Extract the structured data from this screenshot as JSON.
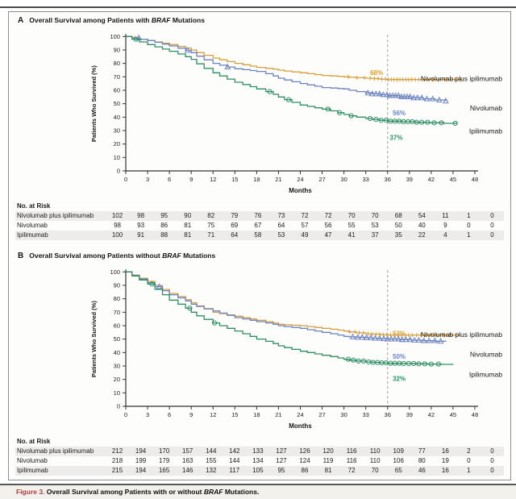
{
  "caption": {
    "label": "Figure 3.",
    "text_before": " Overall Survival among Patients with or without ",
    "italic": "BRAF",
    "text_after": " Mutations."
  },
  "colors": {
    "combo": "#d89e3c",
    "nivolumab": "#6c83c2",
    "ipilimumab": "#2e8e63",
    "caption_red": "#b0413e",
    "axis": "#333333",
    "dashed_line": "#9a9a9a",
    "row_stripe": "#edecea"
  },
  "chart_data": [
    {
      "type": "line",
      "subtype": "kaplan-meier-step",
      "panel_letter": "A",
      "title_prefix": "Overall Survival among Patients with ",
      "title_italic": "BRAF",
      "title_suffix": " Mutations",
      "xlabel": "Months",
      "ylabel": "Patients Who Survived (%)",
      "xlim": [
        0,
        48
      ],
      "ylim": [
        0,
        100
      ],
      "xticks": [
        0,
        3,
        6,
        9,
        12,
        15,
        18,
        21,
        24,
        27,
        30,
        33,
        36,
        39,
        42,
        45,
        48
      ],
      "yticks": [
        0,
        10,
        20,
        30,
        40,
        50,
        60,
        70,
        80,
        90,
        100
      ],
      "grid": false,
      "dashed_line_x": 36,
      "series": [
        {
          "name": "Nivolumab plus ipilimumab",
          "color": "#d89e3c",
          "marker": "plus",
          "rate_label": "68%",
          "rate_pos": [
            33.6,
            71.5
          ],
          "name_pct": 67,
          "anchors": [
            [
              0,
              100
            ],
            [
              3,
              97
            ],
            [
              6,
              94
            ],
            [
              9,
              90
            ],
            [
              12,
              84
            ],
            [
              15,
              80
            ],
            [
              18,
              77
            ],
            [
              21,
              75
            ],
            [
              24,
              73
            ],
            [
              27,
              71
            ],
            [
              30,
              70
            ],
            [
              33,
              69
            ],
            [
              36,
              68
            ],
            [
              46,
              68
            ]
          ],
          "censors": [
            1.2,
            30.6,
            31.8,
            32.8,
            33.6,
            34.2,
            34.7,
            35.2,
            35.7,
            36.1,
            36.5,
            36.9,
            37.3,
            37.7,
            38.1,
            38.5,
            38.9,
            39.3,
            39.8,
            40.3,
            40.9,
            41.5,
            42.2,
            43,
            44,
            45.2,
            46
          ]
        },
        {
          "name": "Nivolumab",
          "color": "#6c83c2",
          "marker": "triangle",
          "rate_label": "56%",
          "rate_pos": [
            36.7,
            41.5
          ],
          "name_pct": 45,
          "anchors": [
            [
              0,
              100
            ],
            [
              3,
              97
            ],
            [
              6,
              93
            ],
            [
              9,
              88
            ],
            [
              12,
              80
            ],
            [
              15,
              76
            ],
            [
              18,
              74
            ],
            [
              21,
              69
            ],
            [
              24,
              65
            ],
            [
              27,
              62
            ],
            [
              30,
              61
            ],
            [
              33,
              58
            ],
            [
              36,
              56
            ],
            [
              44,
              52
            ]
          ],
          "censors": [
            1.8,
            8.5,
            14,
            33.3,
            33.9,
            34.4,
            34.9,
            35.4,
            35.9,
            36.3,
            36.7,
            37.1,
            37.5,
            37.9,
            38.3,
            38.7,
            39.1,
            39.6,
            40.1,
            40.7,
            41.4,
            42.2,
            43.1,
            44
          ]
        },
        {
          "name": "Ipilimumab",
          "color": "#2e8e63",
          "marker": "circle",
          "rate_label": "37%",
          "rate_pos": [
            36.3,
            23
          ],
          "name_pct": 28,
          "anchors": [
            [
              0,
              100
            ],
            [
              3,
              94
            ],
            [
              6,
              89
            ],
            [
              9,
              83
            ],
            [
              12,
              73
            ],
            [
              15,
              66
            ],
            [
              18,
              61
            ],
            [
              21,
              55
            ],
            [
              24,
              49
            ],
            [
              27,
              46
            ],
            [
              30,
              42
            ],
            [
              33,
              39
            ],
            [
              36,
              37
            ],
            [
              45.5,
              35
            ]
          ],
          "censors": [
            1.4,
            19.8,
            22.4,
            27.8,
            29.4,
            31,
            33.6,
            34.4,
            35.1,
            35.8,
            36.4,
            37,
            37.6,
            38.2,
            38.8,
            39.4,
            40,
            40.7,
            41.5,
            42.4,
            43.4,
            45.3
          ]
        }
      ],
      "at_risk": {
        "header": "No. at Risk",
        "rows": [
          {
            "label": "Nivolumab plus ipilimumab",
            "values": [
              102,
              98,
              95,
              90,
              82,
              79,
              76,
              73,
              72,
              72,
              70,
              70,
              68,
              54,
              11,
              1,
              0
            ]
          },
          {
            "label": "Nivolumab",
            "values": [
              98,
              93,
              86,
              81,
              75,
              69,
              67,
              64,
              57,
              56,
              55,
              53,
              50,
              40,
              9,
              0,
              0
            ]
          },
          {
            "label": "Ipilimumab",
            "values": [
              100,
              91,
              88,
              81,
              71,
              64,
              58,
              53,
              49,
              47,
              41,
              37,
              35,
              22,
              4,
              1,
              0
            ]
          }
        ]
      }
    },
    {
      "type": "line",
      "subtype": "kaplan-meier-step",
      "panel_letter": "B",
      "title_prefix": "Overall Survival among Patients without ",
      "title_italic": "BRAF",
      "title_suffix": " Mutations",
      "xlabel": "Months",
      "ylabel": "Patients Who Survived (%)",
      "xlim": [
        0,
        48
      ],
      "ylim": [
        0,
        100
      ],
      "xticks": [
        0,
        3,
        6,
        9,
        12,
        15,
        18,
        21,
        24,
        27,
        30,
        33,
        36,
        39,
        42,
        45,
        48
      ],
      "yticks": [
        0,
        10,
        20,
        30,
        40,
        50,
        60,
        70,
        80,
        90,
        100
      ],
      "grid": false,
      "dashed_line_x": 36,
      "series": [
        {
          "name": "Nivolumab plus ipilimumab",
          "color": "#d89e3c",
          "marker": "plus",
          "rate_label": "53%",
          "rate_pos": [
            36.7,
            52.5
          ],
          "name_pct": 51.5,
          "anchors": [
            [
              0,
              100
            ],
            [
              3,
              93
            ],
            [
              6,
              84
            ],
            [
              9,
              77
            ],
            [
              12,
              70
            ],
            [
              15,
              67
            ],
            [
              18,
              64
            ],
            [
              21,
              61
            ],
            [
              24,
              60
            ],
            [
              27,
              58
            ],
            [
              30,
              56
            ],
            [
              33,
              54
            ],
            [
              36,
              53
            ],
            [
              46,
              53
            ]
          ],
          "censors": [
            30.8,
            31.5,
            32.1,
            32.7,
            33.3,
            33.9,
            34.4,
            34.9,
            35.4,
            35.9,
            36.4,
            36.9,
            37.4,
            37.9,
            38.4,
            38.9,
            39.4,
            40,
            40.6,
            41.3,
            42,
            42.8,
            43.7,
            44.5
          ]
        },
        {
          "name": "Nivolumab",
          "color": "#6c83c2",
          "marker": "triangle",
          "rate_label": "50%",
          "rate_pos": [
            36.7,
            35.5
          ],
          "name_pct": 37,
          "anchors": [
            [
              0,
              100
            ],
            [
              3,
              92
            ],
            [
              6,
              83
            ],
            [
              9,
              76
            ],
            [
              12,
              71
            ],
            [
              15,
              66
            ],
            [
              18,
              63
            ],
            [
              21,
              60
            ],
            [
              24,
              58
            ],
            [
              27,
              55
            ],
            [
              30,
              52
            ],
            [
              33,
              51
            ],
            [
              36,
              50
            ],
            [
              44,
              48
            ]
          ],
          "censors": [
            4.6,
            31.2,
            31.9,
            32.5,
            33.1,
            33.7,
            34.3,
            34.9,
            35.5,
            36,
            36.5,
            37,
            37.5,
            38,
            38.5,
            39.1,
            39.7,
            40.3,
            41,
            41.7,
            42.5,
            43.3
          ]
        },
        {
          "name": "Ipilimumab",
          "color": "#2e8e63",
          "marker": "circle",
          "rate_label": "32%",
          "rate_pos": [
            36.7,
            19
          ],
          "name_pct": 22,
          "anchors": [
            [
              0,
              100
            ],
            [
              3,
              91
            ],
            [
              6,
              79
            ],
            [
              9,
              70
            ],
            [
              12,
              62
            ],
            [
              15,
              56
            ],
            [
              18,
              50
            ],
            [
              21,
              45
            ],
            [
              24,
              41
            ],
            [
              27,
              38
            ],
            [
              30,
              35
            ],
            [
              33,
              33
            ],
            [
              36,
              32
            ],
            [
              45,
              31
            ]
          ],
          "censors": [
            3.6,
            8.8,
            12.2,
            30.6,
            31.3,
            32,
            32.7,
            33.4,
            34,
            34.6,
            35.2,
            35.8,
            36.4,
            37,
            37.6,
            38.2,
            38.9,
            39.6,
            40.3,
            41.1,
            42,
            43
          ]
        }
      ],
      "at_risk": {
        "header": "No. at Risk",
        "rows": [
          {
            "label": "Nivolumab plus ipilimumab",
            "values": [
              212,
              194,
              170,
              157,
              144,
              142,
              133,
              127,
              126,
              120,
              116,
              110,
              109,
              77,
              16,
              2,
              0
            ]
          },
          {
            "label": "Nivolumab",
            "values": [
              218,
              199,
              179,
              163,
              155,
              144,
              134,
              127,
              124,
              119,
              116,
              110,
              106,
              80,
              19,
              0,
              0
            ]
          },
          {
            "label": "Ipilimumab",
            "values": [
              215,
              194,
              165,
              146,
              132,
              117,
              105,
              95,
              86,
              81,
              72,
              70,
              65,
              46,
              16,
              1,
              0
            ]
          }
        ]
      }
    }
  ]
}
